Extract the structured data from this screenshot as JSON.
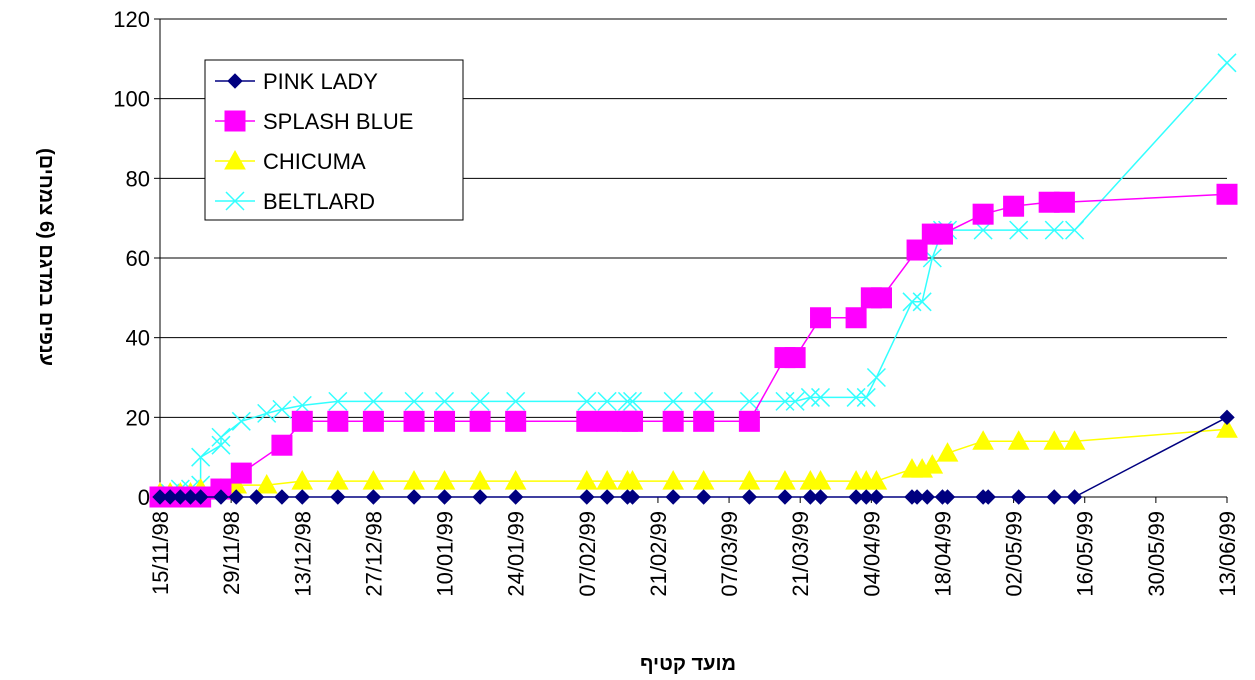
{
  "chart_data": {
    "type": "line",
    "title": "",
    "xlabel": "מועד קטיף",
    "ylabel": "ענפים במדגם (6 צמחים)",
    "ylim": [
      0,
      120
    ],
    "y_ticks": [
      "0",
      "20",
      "40",
      "60",
      "80",
      "100",
      "120"
    ],
    "x_ticks": [
      "15/11/98",
      "29/11/98",
      "13/12/98",
      "27/12/98",
      "10/01/99",
      "24/01/99",
      "07/02/99",
      "21/02/99",
      "07/03/99",
      "21/03/99",
      "04/04/99",
      "18/04/99",
      "02/05/99",
      "16/05/99",
      "30/05/99",
      "13/06/99"
    ],
    "x_tick_dates": [
      "1998-11-15",
      "1998-11-29",
      "1998-12-13",
      "1998-12-27",
      "1999-01-10",
      "1999-01-24",
      "1999-02-07",
      "1999-02-21",
      "1999-03-07",
      "1999-03-21",
      "1999-04-04",
      "1999-04-18",
      "1999-05-02",
      "1999-05-16",
      "1999-05-30",
      "1999-06-13"
    ],
    "xlim": [
      "1998-11-15",
      "1999-06-13"
    ],
    "grid": "horizontal",
    "legend_position": "top-left",
    "series": [
      {
        "name": "PINK LADY",
        "color": "#000080",
        "marker": "diamond",
        "points": [
          [
            "1998-11-15",
            0
          ],
          [
            "1998-11-17",
            0
          ],
          [
            "1998-11-19",
            0
          ],
          [
            "1998-11-21",
            0
          ],
          [
            "1998-11-23",
            0
          ],
          [
            "1998-11-27",
            0
          ],
          [
            "1998-11-30",
            0
          ],
          [
            "1998-12-04",
            0
          ],
          [
            "1998-12-09",
            0
          ],
          [
            "1998-12-13",
            0
          ],
          [
            "1998-12-20",
            0
          ],
          [
            "1998-12-27",
            0
          ],
          [
            "1999-01-04",
            0
          ],
          [
            "1999-01-10",
            0
          ],
          [
            "1999-01-17",
            0
          ],
          [
            "1999-01-24",
            0
          ],
          [
            "1999-02-07",
            0
          ],
          [
            "1999-02-11",
            0
          ],
          [
            "1999-02-15",
            0
          ],
          [
            "1999-02-16",
            0
          ],
          [
            "1999-02-24",
            0
          ],
          [
            "1999-03-02",
            0
          ],
          [
            "1999-03-11",
            0
          ],
          [
            "1999-03-18",
            0
          ],
          [
            "1999-03-23",
            0
          ],
          [
            "1999-03-25",
            0
          ],
          [
            "1999-04-01",
            0
          ],
          [
            "1999-04-03",
            0
          ],
          [
            "1999-04-05",
            0
          ],
          [
            "1999-04-12",
            0
          ],
          [
            "1999-04-13",
            0
          ],
          [
            "1999-04-15",
            0
          ],
          [
            "1999-04-18",
            0
          ],
          [
            "1999-04-19",
            0
          ],
          [
            "1999-04-26",
            0
          ],
          [
            "1999-04-27",
            0
          ],
          [
            "1999-05-03",
            0
          ],
          [
            "1999-05-10",
            0
          ],
          [
            "1999-05-14",
            0
          ],
          [
            "1999-06-13",
            20
          ]
        ]
      },
      {
        "name": "SPLASH BLUE",
        "color": "#ff00ff",
        "marker": "square",
        "points": [
          [
            "1998-11-15",
            0
          ],
          [
            "1998-11-17",
            0
          ],
          [
            "1998-11-19",
            0
          ],
          [
            "1998-11-21",
            0
          ],
          [
            "1998-11-23",
            0
          ],
          [
            "1998-11-27",
            2
          ],
          [
            "1998-12-01",
            6
          ],
          [
            "1998-12-09",
            13
          ],
          [
            "1998-12-13",
            19
          ],
          [
            "1998-12-20",
            19
          ],
          [
            "1998-12-27",
            19
          ],
          [
            "1999-01-04",
            19
          ],
          [
            "1999-01-10",
            19
          ],
          [
            "1999-01-17",
            19
          ],
          [
            "1999-01-24",
            19
          ],
          [
            "1999-02-07",
            19
          ],
          [
            "1999-02-11",
            19
          ],
          [
            "1999-02-15",
            19
          ],
          [
            "1999-02-16",
            19
          ],
          [
            "1999-02-24",
            19
          ],
          [
            "1999-03-02",
            19
          ],
          [
            "1999-03-11",
            19
          ],
          [
            "1999-03-18",
            35
          ],
          [
            "1999-03-20",
            35
          ],
          [
            "1999-03-25",
            45
          ],
          [
            "1999-04-01",
            45
          ],
          [
            "1999-04-04",
            50
          ],
          [
            "1999-04-06",
            50
          ],
          [
            "1999-04-13",
            62
          ],
          [
            "1999-04-16",
            66
          ],
          [
            "1999-04-18",
            66
          ],
          [
            "1999-04-26",
            71
          ],
          [
            "1999-05-02",
            73
          ],
          [
            "1999-05-09",
            74
          ],
          [
            "1999-05-12",
            74
          ],
          [
            "1999-06-13",
            76
          ]
        ]
      },
      {
        "name": "CHICUMA",
        "color": "#ffff00",
        "marker": "triangle",
        "points": [
          [
            "1998-11-15",
            1
          ],
          [
            "1998-11-17",
            1
          ],
          [
            "1998-11-19",
            1
          ],
          [
            "1998-11-21",
            1
          ],
          [
            "1998-11-23",
            2
          ],
          [
            "1998-11-27",
            2
          ],
          [
            "1998-11-30",
            3
          ],
          [
            "1998-12-06",
            3
          ],
          [
            "1998-12-13",
            4
          ],
          [
            "1998-12-20",
            4
          ],
          [
            "1998-12-27",
            4
          ],
          [
            "1999-01-04",
            4
          ],
          [
            "1999-01-10",
            4
          ],
          [
            "1999-01-17",
            4
          ],
          [
            "1999-01-24",
            4
          ],
          [
            "1999-02-07",
            4
          ],
          [
            "1999-02-11",
            4
          ],
          [
            "1999-02-15",
            4
          ],
          [
            "1999-02-16",
            4
          ],
          [
            "1999-02-24",
            4
          ],
          [
            "1999-03-02",
            4
          ],
          [
            "1999-03-11",
            4
          ],
          [
            "1999-03-18",
            4
          ],
          [
            "1999-03-23",
            4
          ],
          [
            "1999-03-25",
            4
          ],
          [
            "1999-04-01",
            4
          ],
          [
            "1999-04-03",
            4
          ],
          [
            "1999-04-05",
            4
          ],
          [
            "1999-04-12",
            7
          ],
          [
            "1999-04-14",
            7
          ],
          [
            "1999-04-16",
            8
          ],
          [
            "1999-04-19",
            11
          ],
          [
            "1999-04-26",
            14
          ],
          [
            "1999-05-03",
            14
          ],
          [
            "1999-05-10",
            14
          ],
          [
            "1999-05-14",
            14
          ],
          [
            "1999-06-13",
            17
          ]
        ]
      },
      {
        "name": "BELTLARD",
        "color": "#33ffff",
        "marker": "x",
        "points": [
          [
            "1998-11-15",
            0
          ],
          [
            "1998-11-17",
            1
          ],
          [
            "1998-11-19",
            2
          ],
          [
            "1998-11-21",
            2
          ],
          [
            "1998-11-23",
            3
          ],
          [
            "1998-11-23",
            10
          ],
          [
            "1998-11-27",
            13
          ],
          [
            "1998-11-27",
            15
          ],
          [
            "1998-12-01",
            19
          ],
          [
            "1998-12-06",
            21
          ],
          [
            "1998-12-09",
            22
          ],
          [
            "1998-12-13",
            23
          ],
          [
            "1998-12-20",
            24
          ],
          [
            "1998-12-27",
            24
          ],
          [
            "1999-01-04",
            24
          ],
          [
            "1999-01-10",
            24
          ],
          [
            "1999-01-17",
            24
          ],
          [
            "1999-01-24",
            24
          ],
          [
            "1999-02-07",
            24
          ],
          [
            "1999-02-11",
            24
          ],
          [
            "1999-02-15",
            24
          ],
          [
            "1999-02-16",
            24
          ],
          [
            "1999-02-24",
            24
          ],
          [
            "1999-03-02",
            24
          ],
          [
            "1999-03-11",
            24
          ],
          [
            "1999-03-18",
            24
          ],
          [
            "1999-03-20",
            24
          ],
          [
            "1999-03-23",
            25
          ],
          [
            "1999-03-25",
            25
          ],
          [
            "1999-04-01",
            25
          ],
          [
            "1999-04-03",
            25
          ],
          [
            "1999-04-05",
            30
          ],
          [
            "1999-04-12",
            49
          ],
          [
            "1999-04-14",
            49
          ],
          [
            "1999-04-16",
            60
          ],
          [
            "1999-04-18",
            67
          ],
          [
            "1999-04-19",
            67
          ],
          [
            "1999-04-26",
            67
          ],
          [
            "1999-05-03",
            67
          ],
          [
            "1999-05-10",
            67
          ],
          [
            "1999-05-14",
            67
          ],
          [
            "1999-06-13",
            109
          ]
        ]
      }
    ]
  }
}
